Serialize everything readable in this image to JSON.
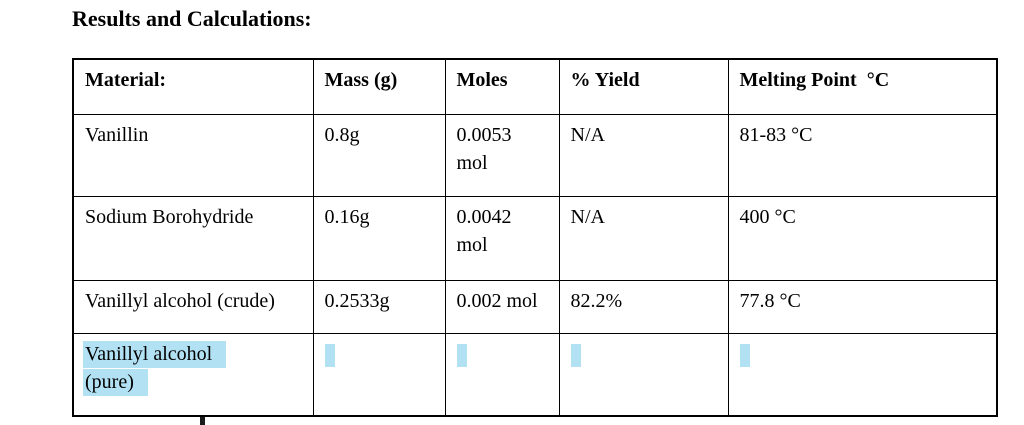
{
  "document": {
    "title": "Results and Calculations:"
  },
  "colors": {
    "highlight": "#b3e1f4",
    "border": "#000000",
    "text": "#000000",
    "background": "#ffffff"
  },
  "table": {
    "headers": [
      "Material:",
      "Mass (g)",
      "Moles",
      "% Yield",
      "Melting Point  °C"
    ],
    "rows": [
      {
        "material": "Vanillin",
        "mass": "0.8g",
        "moles": "0.0053\nmol",
        "yield": "N/A",
        "melting_point": "81-83 °C"
      },
      {
        "material": "Sodium Borohydride",
        "mass": "0.16g",
        "moles": "0.0042\nmol",
        "yield": "N/A",
        "melting_point": "400 °C"
      },
      {
        "material": "Vanillyl alcohol (crude)",
        "mass": "0.2533g",
        "moles": "0.002 mol",
        "yield": "82.2%",
        "melting_point": "77.8 °C"
      },
      {
        "material": "Vanillyl alcohol\n(pure)",
        "mass": "",
        "moles": "",
        "yield": "",
        "melting_point": "",
        "selection": "highlighted"
      }
    ]
  }
}
